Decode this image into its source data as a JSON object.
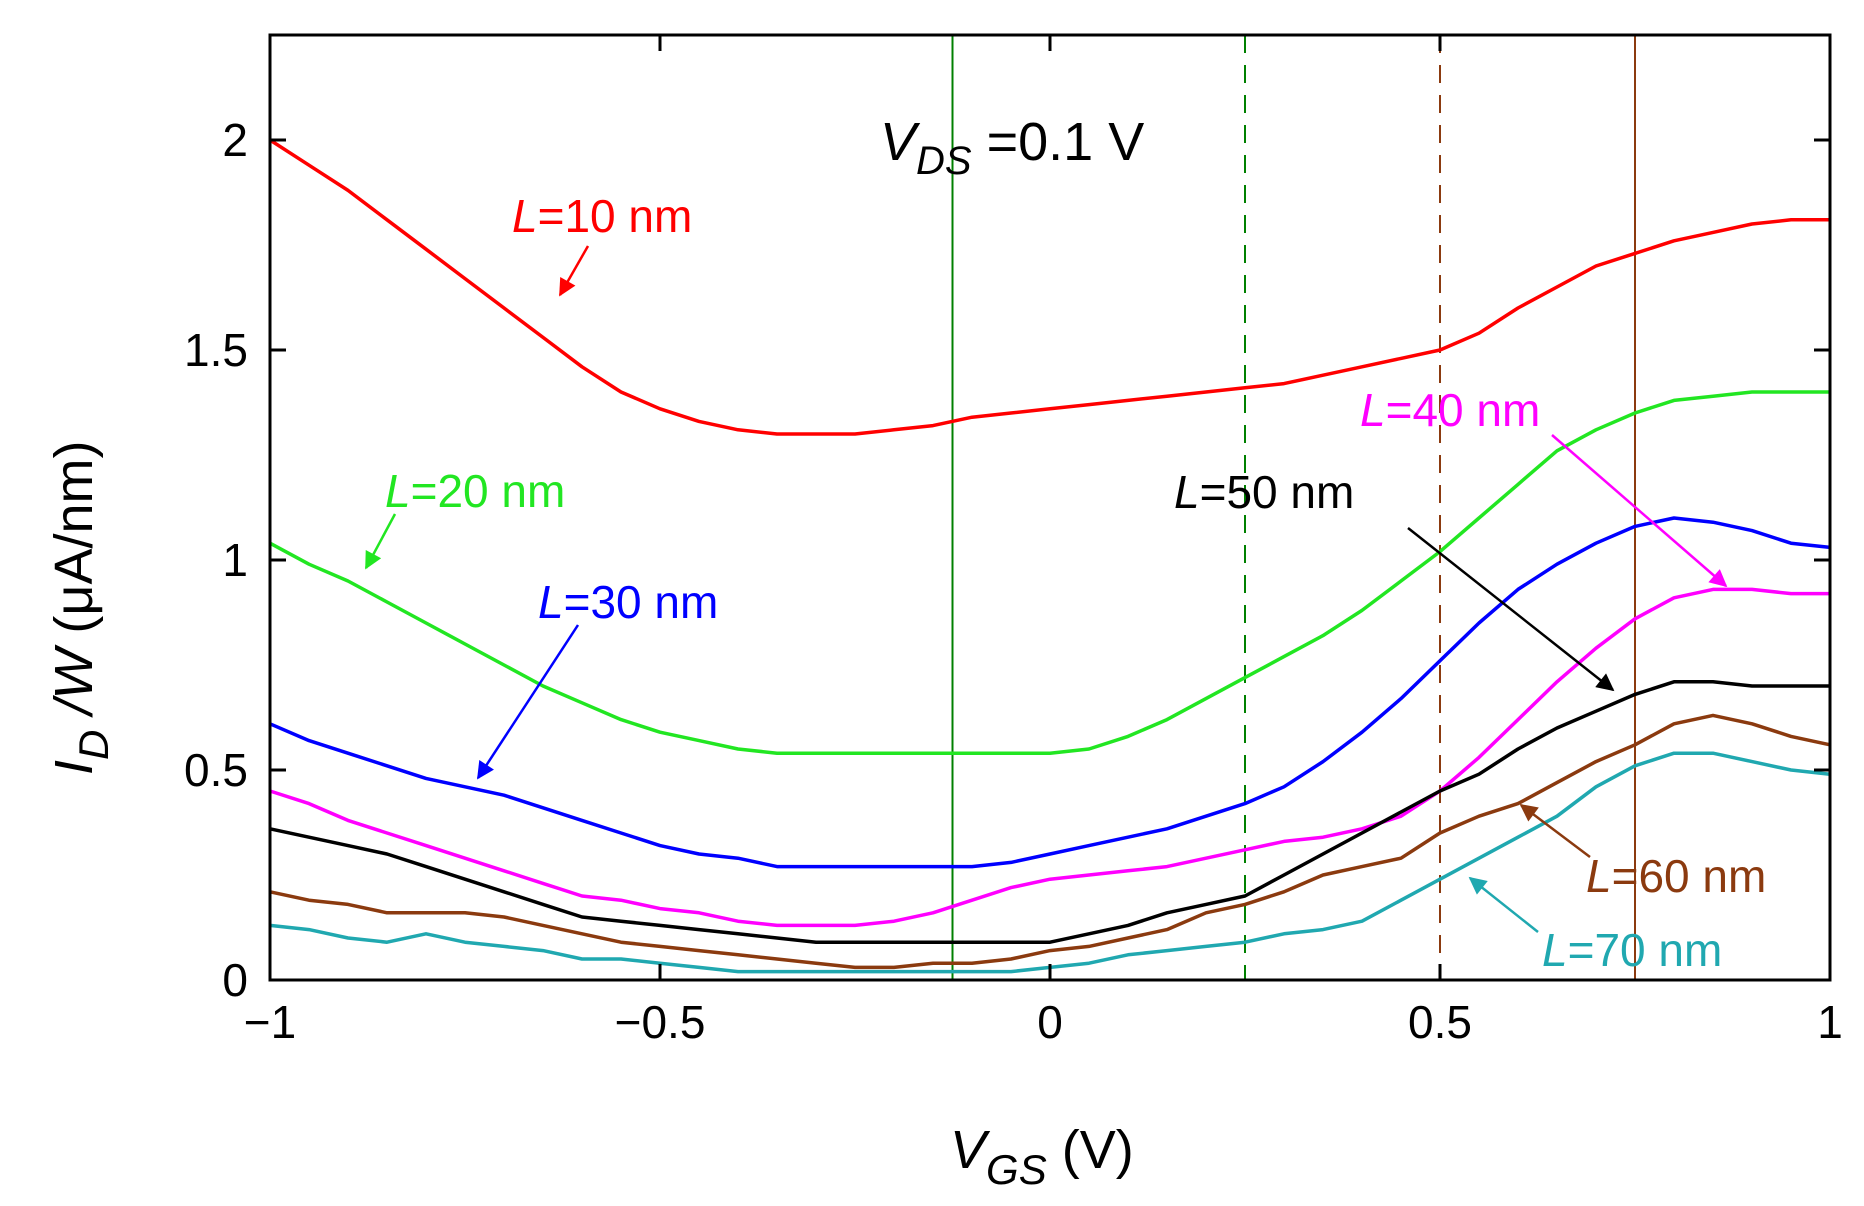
{
  "chart_data": {
    "type": "line",
    "title": "",
    "annotation": {
      "var": "V",
      "sub": "DS",
      "rest": " =0.1 V"
    },
    "xlabel": {
      "var": "V",
      "sub": "GS",
      "rest": " (V)"
    },
    "ylabel": {
      "var1": "I",
      "sub": "D",
      "var2": " /W",
      "rest": " (μA/nm)"
    },
    "xlim": [
      -1,
      1
    ],
    "ylim": [
      0,
      2.25
    ],
    "xticks": [
      -1,
      -0.5,
      0,
      0.5,
      1
    ],
    "yticks": [
      0,
      0.5,
      1,
      1.5,
      2
    ],
    "xtick_labels": [
      "−1",
      "−0.5",
      "0",
      "0.5",
      "1"
    ],
    "ytick_labels": [
      "0",
      "0.5",
      "1",
      "1.5",
      "2"
    ],
    "grid": false,
    "vertical_lines": [
      {
        "x": -0.125,
        "color": "#008000",
        "style": "solid"
      },
      {
        "x": 0.25,
        "color": "#008000",
        "style": "dashed"
      },
      {
        "x": 0.5,
        "color": "#8b3a0f",
        "style": "dashed"
      },
      {
        "x": 0.75,
        "color": "#8b3a0f",
        "style": "solid"
      }
    ],
    "series": [
      {
        "name": "L=10 nm",
        "label_var": "L",
        "label_rest": "=10 nm",
        "color": "#ff0000",
        "points": [
          [
            -1,
            2.0
          ],
          [
            -0.95,
            1.94
          ],
          [
            -0.9,
            1.88
          ],
          [
            -0.85,
            1.81
          ],
          [
            -0.8,
            1.74
          ],
          [
            -0.75,
            1.67
          ],
          [
            -0.7,
            1.6
          ],
          [
            -0.65,
            1.53
          ],
          [
            -0.6,
            1.46
          ],
          [
            -0.55,
            1.4
          ],
          [
            -0.5,
            1.36
          ],
          [
            -0.45,
            1.33
          ],
          [
            -0.4,
            1.31
          ],
          [
            -0.35,
            1.3
          ],
          [
            -0.3,
            1.3
          ],
          [
            -0.25,
            1.3
          ],
          [
            -0.2,
            1.31
          ],
          [
            -0.15,
            1.32
          ],
          [
            -0.1,
            1.34
          ],
          [
            -0.05,
            1.35
          ],
          [
            0,
            1.36
          ],
          [
            0.05,
            1.37
          ],
          [
            0.1,
            1.38
          ],
          [
            0.15,
            1.39
          ],
          [
            0.2,
            1.4
          ],
          [
            0.25,
            1.41
          ],
          [
            0.3,
            1.42
          ],
          [
            0.35,
            1.44
          ],
          [
            0.4,
            1.46
          ],
          [
            0.45,
            1.48
          ],
          [
            0.5,
            1.5
          ],
          [
            0.55,
            1.54
          ],
          [
            0.6,
            1.6
          ],
          [
            0.65,
            1.65
          ],
          [
            0.7,
            1.7
          ],
          [
            0.75,
            1.73
          ],
          [
            0.8,
            1.76
          ],
          [
            0.85,
            1.78
          ],
          [
            0.9,
            1.8
          ],
          [
            0.95,
            1.81
          ],
          [
            1,
            1.81
          ]
        ]
      },
      {
        "name": "L=20 nm",
        "label_var": "L",
        "label_rest": "=20 nm",
        "color": "#22e622",
        "points": [
          [
            -1,
            1.04
          ],
          [
            -0.95,
            0.99
          ],
          [
            -0.9,
            0.95
          ],
          [
            -0.85,
            0.9
          ],
          [
            -0.8,
            0.85
          ],
          [
            -0.75,
            0.8
          ],
          [
            -0.7,
            0.75
          ],
          [
            -0.65,
            0.7
          ],
          [
            -0.6,
            0.66
          ],
          [
            -0.55,
            0.62
          ],
          [
            -0.5,
            0.59
          ],
          [
            -0.45,
            0.57
          ],
          [
            -0.4,
            0.55
          ],
          [
            -0.35,
            0.54
          ],
          [
            -0.3,
            0.54
          ],
          [
            -0.25,
            0.54
          ],
          [
            -0.2,
            0.54
          ],
          [
            -0.15,
            0.54
          ],
          [
            -0.1,
            0.54
          ],
          [
            -0.05,
            0.54
          ],
          [
            0,
            0.54
          ],
          [
            0.05,
            0.55
          ],
          [
            0.1,
            0.58
          ],
          [
            0.15,
            0.62
          ],
          [
            0.2,
            0.67
          ],
          [
            0.25,
            0.72
          ],
          [
            0.3,
            0.77
          ],
          [
            0.35,
            0.82
          ],
          [
            0.4,
            0.88
          ],
          [
            0.45,
            0.95
          ],
          [
            0.5,
            1.02
          ],
          [
            0.55,
            1.1
          ],
          [
            0.6,
            1.18
          ],
          [
            0.65,
            1.26
          ],
          [
            0.7,
            1.31
          ],
          [
            0.75,
            1.35
          ],
          [
            0.8,
            1.38
          ],
          [
            0.85,
            1.39
          ],
          [
            0.9,
            1.4
          ],
          [
            0.95,
            1.4
          ],
          [
            1,
            1.4
          ]
        ]
      },
      {
        "name": "L=30 nm",
        "label_var": "L",
        "label_rest": "=30 nm",
        "color": "#0000ff",
        "points": [
          [
            -1,
            0.61
          ],
          [
            -0.95,
            0.57
          ],
          [
            -0.9,
            0.54
          ],
          [
            -0.85,
            0.51
          ],
          [
            -0.8,
            0.48
          ],
          [
            -0.75,
            0.46
          ],
          [
            -0.7,
            0.44
          ],
          [
            -0.65,
            0.41
          ],
          [
            -0.6,
            0.38
          ],
          [
            -0.55,
            0.35
          ],
          [
            -0.5,
            0.32
          ],
          [
            -0.45,
            0.3
          ],
          [
            -0.4,
            0.29
          ],
          [
            -0.35,
            0.27
          ],
          [
            -0.3,
            0.27
          ],
          [
            -0.25,
            0.27
          ],
          [
            -0.2,
            0.27
          ],
          [
            -0.15,
            0.27
          ],
          [
            -0.1,
            0.27
          ],
          [
            -0.05,
            0.28
          ],
          [
            0,
            0.3
          ],
          [
            0.05,
            0.32
          ],
          [
            0.1,
            0.34
          ],
          [
            0.15,
            0.36
          ],
          [
            0.2,
            0.39
          ],
          [
            0.25,
            0.42
          ],
          [
            0.3,
            0.46
          ],
          [
            0.35,
            0.52
          ],
          [
            0.4,
            0.59
          ],
          [
            0.45,
            0.67
          ],
          [
            0.5,
            0.76
          ],
          [
            0.55,
            0.85
          ],
          [
            0.6,
            0.93
          ],
          [
            0.65,
            0.99
          ],
          [
            0.7,
            1.04
          ],
          [
            0.75,
            1.08
          ],
          [
            0.8,
            1.1
          ],
          [
            0.85,
            1.09
          ],
          [
            0.9,
            1.07
          ],
          [
            0.95,
            1.04
          ],
          [
            1,
            1.03
          ]
        ]
      },
      {
        "name": "L=40 nm",
        "label_var": "L",
        "label_rest": "=40 nm",
        "color": "#ff00ff",
        "points": [
          [
            -1,
            0.45
          ],
          [
            -0.95,
            0.42
          ],
          [
            -0.9,
            0.38
          ],
          [
            -0.85,
            0.35
          ],
          [
            -0.8,
            0.32
          ],
          [
            -0.75,
            0.29
          ],
          [
            -0.7,
            0.26
          ],
          [
            -0.65,
            0.23
          ],
          [
            -0.6,
            0.2
          ],
          [
            -0.55,
            0.19
          ],
          [
            -0.5,
            0.17
          ],
          [
            -0.45,
            0.16
          ],
          [
            -0.4,
            0.14
          ],
          [
            -0.35,
            0.13
          ],
          [
            -0.3,
            0.13
          ],
          [
            -0.25,
            0.13
          ],
          [
            -0.2,
            0.14
          ],
          [
            -0.15,
            0.16
          ],
          [
            -0.1,
            0.19
          ],
          [
            -0.05,
            0.22
          ],
          [
            0,
            0.24
          ],
          [
            0.05,
            0.25
          ],
          [
            0.1,
            0.26
          ],
          [
            0.15,
            0.27
          ],
          [
            0.2,
            0.29
          ],
          [
            0.25,
            0.31
          ],
          [
            0.3,
            0.33
          ],
          [
            0.35,
            0.34
          ],
          [
            0.4,
            0.36
          ],
          [
            0.45,
            0.39
          ],
          [
            0.5,
            0.45
          ],
          [
            0.55,
            0.53
          ],
          [
            0.6,
            0.62
          ],
          [
            0.65,
            0.71
          ],
          [
            0.7,
            0.79
          ],
          [
            0.75,
            0.86
          ],
          [
            0.8,
            0.91
          ],
          [
            0.85,
            0.93
          ],
          [
            0.9,
            0.93
          ],
          [
            0.95,
            0.92
          ],
          [
            1,
            0.92
          ]
        ]
      },
      {
        "name": "L=50 nm",
        "label_var": "L",
        "label_rest": "=50 nm",
        "color": "#000000",
        "points": [
          [
            -1,
            0.36
          ],
          [
            -0.95,
            0.34
          ],
          [
            -0.9,
            0.32
          ],
          [
            -0.85,
            0.3
          ],
          [
            -0.8,
            0.27
          ],
          [
            -0.75,
            0.24
          ],
          [
            -0.7,
            0.21
          ],
          [
            -0.65,
            0.18
          ],
          [
            -0.6,
            0.15
          ],
          [
            -0.55,
            0.14
          ],
          [
            -0.5,
            0.13
          ],
          [
            -0.45,
            0.12
          ],
          [
            -0.4,
            0.11
          ],
          [
            -0.35,
            0.1
          ],
          [
            -0.3,
            0.09
          ],
          [
            -0.25,
            0.09
          ],
          [
            -0.2,
            0.09
          ],
          [
            -0.15,
            0.09
          ],
          [
            -0.1,
            0.09
          ],
          [
            -0.05,
            0.09
          ],
          [
            0,
            0.09
          ],
          [
            0.05,
            0.11
          ],
          [
            0.1,
            0.13
          ],
          [
            0.15,
            0.16
          ],
          [
            0.2,
            0.18
          ],
          [
            0.25,
            0.2
          ],
          [
            0.3,
            0.25
          ],
          [
            0.35,
            0.3
          ],
          [
            0.4,
            0.35
          ],
          [
            0.45,
            0.4
          ],
          [
            0.5,
            0.45
          ],
          [
            0.55,
            0.49
          ],
          [
            0.6,
            0.55
          ],
          [
            0.65,
            0.6
          ],
          [
            0.7,
            0.64
          ],
          [
            0.75,
            0.68
          ],
          [
            0.8,
            0.71
          ],
          [
            0.85,
            0.71
          ],
          [
            0.9,
            0.7
          ],
          [
            0.95,
            0.7
          ],
          [
            1,
            0.7
          ]
        ]
      },
      {
        "name": "L=60 nm",
        "label_var": "L",
        "label_rest": "=60 nm",
        "color": "#8b3a0f",
        "points": [
          [
            -1,
            0.21
          ],
          [
            -0.95,
            0.19
          ],
          [
            -0.9,
            0.18
          ],
          [
            -0.85,
            0.16
          ],
          [
            -0.8,
            0.16
          ],
          [
            -0.75,
            0.16
          ],
          [
            -0.7,
            0.15
          ],
          [
            -0.65,
            0.13
          ],
          [
            -0.6,
            0.11
          ],
          [
            -0.55,
            0.09
          ],
          [
            -0.5,
            0.08
          ],
          [
            -0.45,
            0.07
          ],
          [
            -0.4,
            0.06
          ],
          [
            -0.35,
            0.05
          ],
          [
            -0.3,
            0.04
          ],
          [
            -0.25,
            0.03
          ],
          [
            -0.2,
            0.03
          ],
          [
            -0.15,
            0.04
          ],
          [
            -0.1,
            0.04
          ],
          [
            -0.05,
            0.05
          ],
          [
            0,
            0.07
          ],
          [
            0.05,
            0.08
          ],
          [
            0.1,
            0.1
          ],
          [
            0.15,
            0.12
          ],
          [
            0.2,
            0.16
          ],
          [
            0.25,
            0.18
          ],
          [
            0.3,
            0.21
          ],
          [
            0.35,
            0.25
          ],
          [
            0.4,
            0.27
          ],
          [
            0.45,
            0.29
          ],
          [
            0.5,
            0.35
          ],
          [
            0.55,
            0.39
          ],
          [
            0.6,
            0.42
          ],
          [
            0.65,
            0.47
          ],
          [
            0.7,
            0.52
          ],
          [
            0.75,
            0.56
          ],
          [
            0.8,
            0.61
          ],
          [
            0.85,
            0.63
          ],
          [
            0.9,
            0.61
          ],
          [
            0.95,
            0.58
          ],
          [
            1,
            0.56
          ]
        ]
      },
      {
        "name": "L=70 nm",
        "label_var": "L",
        "label_rest": "=70 nm",
        "color": "#20a8b0",
        "points": [
          [
            -1,
            0.13
          ],
          [
            -0.95,
            0.12
          ],
          [
            -0.9,
            0.1
          ],
          [
            -0.85,
            0.09
          ],
          [
            -0.8,
            0.11
          ],
          [
            -0.75,
            0.09
          ],
          [
            -0.7,
            0.08
          ],
          [
            -0.65,
            0.07
          ],
          [
            -0.6,
            0.05
          ],
          [
            -0.55,
            0.05
          ],
          [
            -0.5,
            0.04
          ],
          [
            -0.45,
            0.03
          ],
          [
            -0.4,
            0.02
          ],
          [
            -0.35,
            0.02
          ],
          [
            -0.3,
            0.02
          ],
          [
            -0.25,
            0.02
          ],
          [
            -0.2,
            0.02
          ],
          [
            -0.15,
            0.02
          ],
          [
            -0.1,
            0.02
          ],
          [
            -0.05,
            0.02
          ],
          [
            0,
            0.03
          ],
          [
            0.05,
            0.04
          ],
          [
            0.1,
            0.06
          ],
          [
            0.15,
            0.07
          ],
          [
            0.2,
            0.08
          ],
          [
            0.25,
            0.09
          ],
          [
            0.3,
            0.11
          ],
          [
            0.35,
            0.12
          ],
          [
            0.4,
            0.14
          ],
          [
            0.45,
            0.19
          ],
          [
            0.5,
            0.24
          ],
          [
            0.55,
            0.29
          ],
          [
            0.6,
            0.34
          ],
          [
            0.65,
            0.39
          ],
          [
            0.7,
            0.46
          ],
          [
            0.75,
            0.51
          ],
          [
            0.8,
            0.54
          ],
          [
            0.85,
            0.54
          ],
          [
            0.9,
            0.52
          ],
          [
            0.95,
            0.5
          ],
          [
            1,
            0.49
          ]
        ]
      }
    ]
  }
}
